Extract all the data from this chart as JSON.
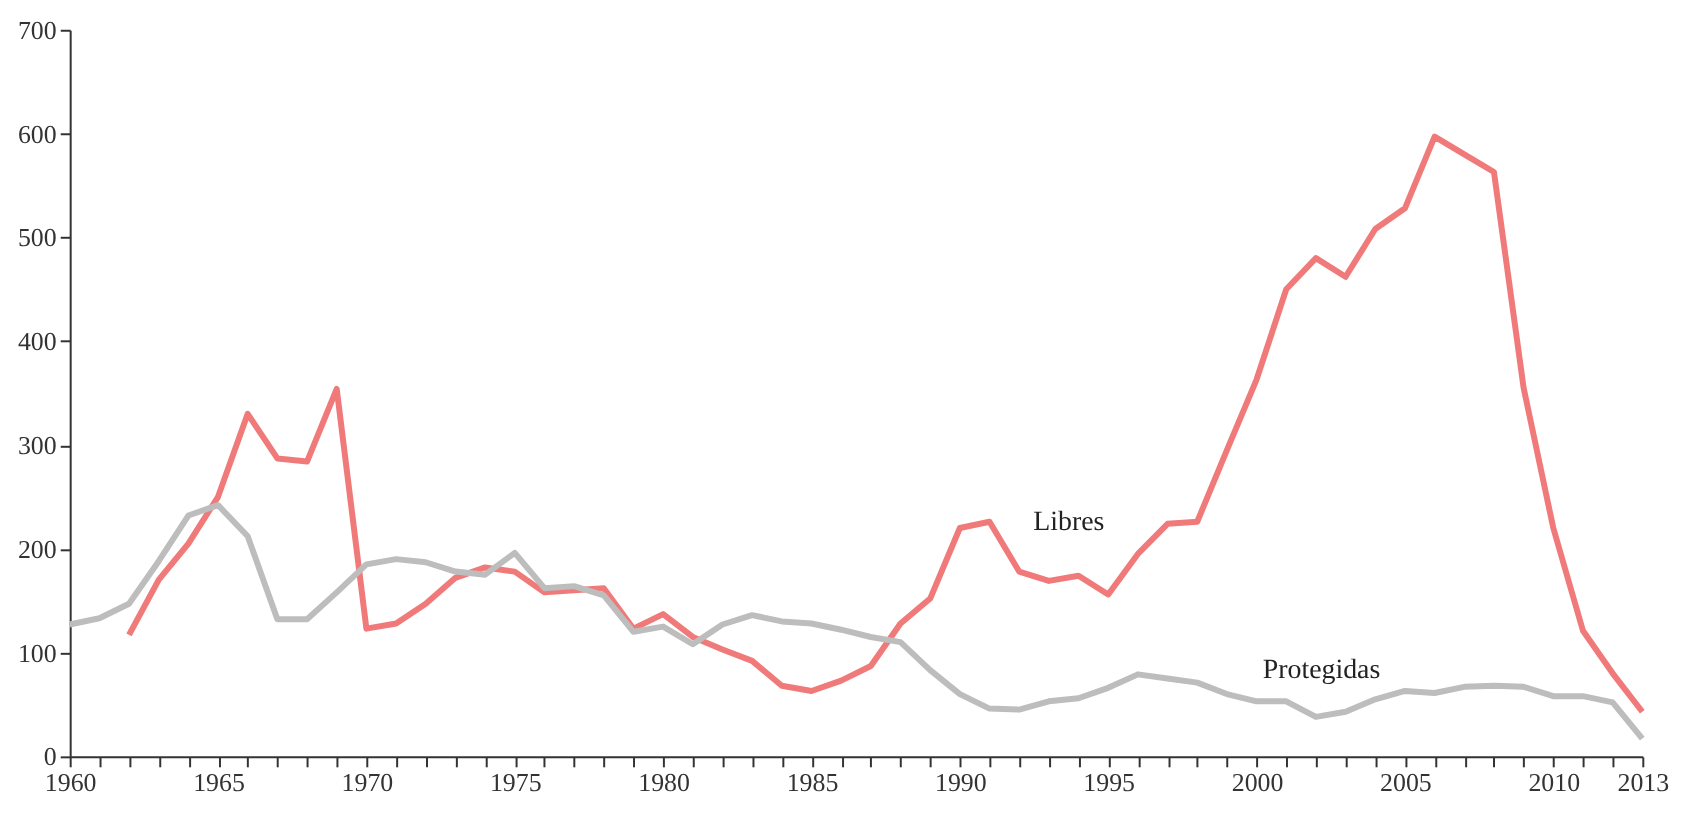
{
  "chart_data": {
    "type": "line",
    "x": [
      1960,
      1961,
      1962,
      1963,
      1964,
      1965,
      1966,
      1967,
      1968,
      1969,
      1970,
      1971,
      1972,
      1973,
      1974,
      1975,
      1976,
      1977,
      1978,
      1979,
      1980,
      1981,
      1982,
      1983,
      1984,
      1985,
      1986,
      1987,
      1988,
      1989,
      1990,
      1991,
      1992,
      1993,
      1994,
      1995,
      1996,
      1997,
      1998,
      1999,
      2000,
      2001,
      2002,
      2003,
      2004,
      2005,
      2006,
      2007,
      2008,
      2009,
      2010,
      2011,
      2012,
      2013
    ],
    "series": [
      {
        "name": "Libres",
        "color": "#f07a7a",
        "values": [
          null,
          null,
          117,
          170,
          205,
          250,
          330,
          287,
          284,
          354,
          123,
          128,
          147,
          172,
          182,
          178,
          158,
          160,
          162,
          123,
          137,
          115,
          103,
          92,
          68,
          63,
          73,
          87,
          128,
          152,
          220,
          226,
          178,
          169,
          174,
          156,
          195,
          224,
          226,
          295,
          363,
          450,
          480,
          462,
          508,
          528,
          597,
          580,
          563,
          355,
          220,
          121,
          80,
          43
        ]
      },
      {
        "name": "Protegidas",
        "color": "#bdbdbd",
        "values": [
          127,
          133,
          147,
          188,
          232,
          242,
          212,
          132,
          132,
          158,
          185,
          190,
          187,
          178,
          175,
          196,
          162,
          164,
          155,
          120,
          125,
          108,
          127,
          136,
          130,
          128,
          122,
          115,
          110,
          83,
          60,
          46,
          45,
          53,
          56,
          66,
          79,
          75,
          71,
          60,
          53,
          53,
          38,
          43,
          55,
          63,
          61,
          67,
          68,
          67,
          58,
          58,
          52,
          17
        ]
      }
    ],
    "xlim": [
      1960,
      2013
    ],
    "xticks": [
      1960,
      {
        "value": 1961,
        "label": null
      },
      {
        "value": 1962,
        "label": null
      },
      {
        "value": 1963,
        "label": null
      },
      {
        "value": 1964,
        "label": null
      },
      1965,
      {
        "value": 1966,
        "label": null
      },
      {
        "value": 1967,
        "label": null
      },
      {
        "value": 1968,
        "label": null
      },
      {
        "value": 1969,
        "label": null
      },
      1970,
      {
        "value": 1971,
        "label": null
      },
      {
        "value": 1972,
        "label": null
      },
      {
        "value": 1973,
        "label": null
      },
      {
        "value": 1974,
        "label": null
      },
      1975,
      {
        "value": 1976,
        "label": null
      },
      {
        "value": 1977,
        "label": null
      },
      {
        "value": 1978,
        "label": null
      },
      {
        "value": 1979,
        "label": null
      },
      1980,
      {
        "value": 1981,
        "label": null
      },
      {
        "value": 1982,
        "label": null
      },
      {
        "value": 1983,
        "label": null
      },
      {
        "value": 1984,
        "label": null
      },
      1985,
      {
        "value": 1986,
        "label": null
      },
      {
        "value": 1987,
        "label": null
      },
      {
        "value": 1988,
        "label": null
      },
      {
        "value": 1989,
        "label": null
      },
      1990,
      {
        "value": 1991,
        "label": null
      },
      {
        "value": 1992,
        "label": null
      },
      {
        "value": 1993,
        "label": null
      },
      {
        "value": 1994,
        "label": null
      },
      1995,
      {
        "value": 1996,
        "label": null
      },
      {
        "value": 1997,
        "label": null
      },
      {
        "value": 1998,
        "label": null
      },
      {
        "value": 1999,
        "label": null
      },
      2000,
      {
        "value": 2001,
        "label": null
      },
      {
        "value": 2002,
        "label": null
      },
      {
        "value": 2003,
        "label": null
      },
      {
        "value": 2004,
        "label": null
      },
      2005,
      {
        "value": 2006,
        "label": null
      },
      {
        "value": 2007,
        "label": null
      },
      {
        "value": 2008,
        "label": null
      },
      {
        "value": 2009,
        "label": null
      },
      2010,
      {
        "value": 2011,
        "label": null
      },
      {
        "value": 2012,
        "label": null
      },
      2013
    ],
    "ylim": [
      0,
      700
    ],
    "yticks": [
      0,
      100,
      200,
      300,
      400,
      500,
      600,
      700
    ],
    "grid": false,
    "legend": false,
    "marker": "none",
    "line_style": "solid"
  }
}
